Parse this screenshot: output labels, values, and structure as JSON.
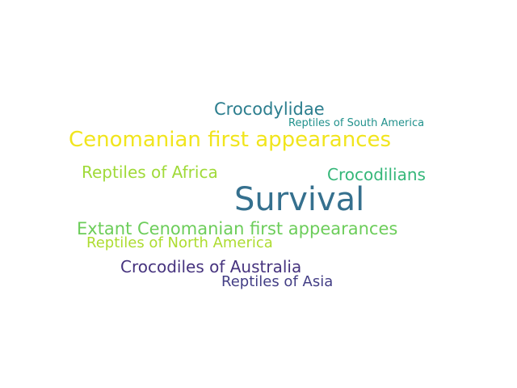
{
  "words": [
    {
      "text": "Survival",
      "color": "#35708e"
    },
    {
      "text": "Cenomanian first appearances",
      "color": "#f1e51d"
    },
    {
      "text": "Extant Cenomanian first appearances",
      "color": "#6ccd5a"
    },
    {
      "text": "Crocodylidae",
      "color": "#2c7e8e"
    },
    {
      "text": "Reptiles of Africa",
      "color": "#a0da39"
    },
    {
      "text": "Crocodilians",
      "color": "#35b779"
    },
    {
      "text": "Crocodiles of Australia",
      "color": "#46337e"
    },
    {
      "text": "Reptiles of North America",
      "color": "#addc30"
    },
    {
      "text": "Reptiles of Asia",
      "color": "#433e85"
    },
    {
      "text": "Reptiles of South America",
      "color": "#21918c"
    }
  ]
}
